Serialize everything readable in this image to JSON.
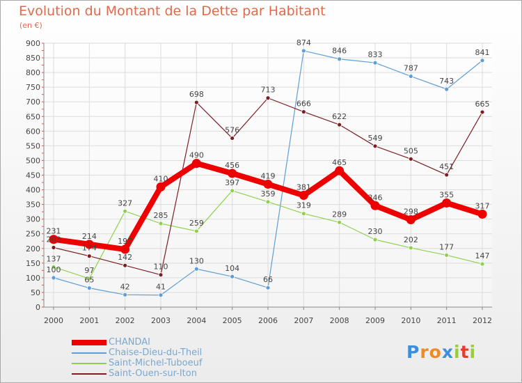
{
  "title": "Evolution du Montant de la Dette par Habitant",
  "subtitle": "(en €)",
  "logo": {
    "letters": [
      "P",
      "r",
      "o",
      "x",
      "i",
      "t",
      "i"
    ],
    "colors": [
      "#3f8ed8",
      "#f08a24",
      "#f08a24",
      "#3f8ed8",
      "#9acb3c",
      "#e63b2e",
      "#9acb3c"
    ]
  },
  "chart_data": {
    "type": "line",
    "x": [
      "2000",
      "2001",
      "2002",
      "2003",
      "2004",
      "2005",
      "2006",
      "2007",
      "2008",
      "2009",
      "2010",
      "2011",
      "2012"
    ],
    "ylim": [
      0,
      900
    ],
    "yticks": [
      0,
      50,
      100,
      150,
      200,
      250,
      300,
      350,
      400,
      450,
      500,
      550,
      600,
      650,
      700,
      750,
      800,
      850,
      900
    ],
    "grid": true,
    "legend_position": "bottom-left",
    "series": [
      {
        "name": "CHANDAI",
        "color": "#ee0000",
        "values": [
          231,
          214,
          197,
          410,
          490,
          456,
          419,
          381,
          465,
          346,
          298,
          355,
          317
        ],
        "labels": [
          "231",
          "214",
          "197",
          "410",
          "490",
          "456",
          "419",
          "381",
          "465",
          "346",
          "298",
          "355",
          "317"
        ]
      },
      {
        "name": "Chaise-Dieu-du-Theil",
        "color": "#5e9ed6",
        "values": [
          100,
          65,
          42,
          41,
          130,
          104,
          66,
          874,
          846,
          833,
          787,
          743,
          841
        ],
        "labels": [
          "100",
          "65",
          "42",
          "41",
          "130",
          "104",
          "66",
          "874",
          "846",
          "833",
          "787",
          "743",
          "841"
        ]
      },
      {
        "name": "Saint-Michel-Tuboeuf",
        "color": "#8fd14f",
        "values": [
          137,
          97,
          327,
          285,
          259,
          397,
          359,
          319,
          289,
          230,
          202,
          177,
          147
        ],
        "labels": [
          "137",
          "97",
          "327",
          "285",
          "259",
          "397",
          "359",
          "319",
          "289",
          "230",
          "202",
          "177",
          "147"
        ]
      },
      {
        "name": "Saint-Ouen-sur-Iton",
        "color": "#7a1f23",
        "values": [
          203,
          174,
          142,
          110,
          698,
          576,
          713,
          666,
          622,
          549,
          505,
          451,
          665
        ],
        "labels": [
          "203",
          "174",
          "142",
          "110",
          "698",
          "576",
          "713",
          "666",
          "622",
          "549",
          "505",
          "451",
          "665"
        ]
      }
    ]
  }
}
